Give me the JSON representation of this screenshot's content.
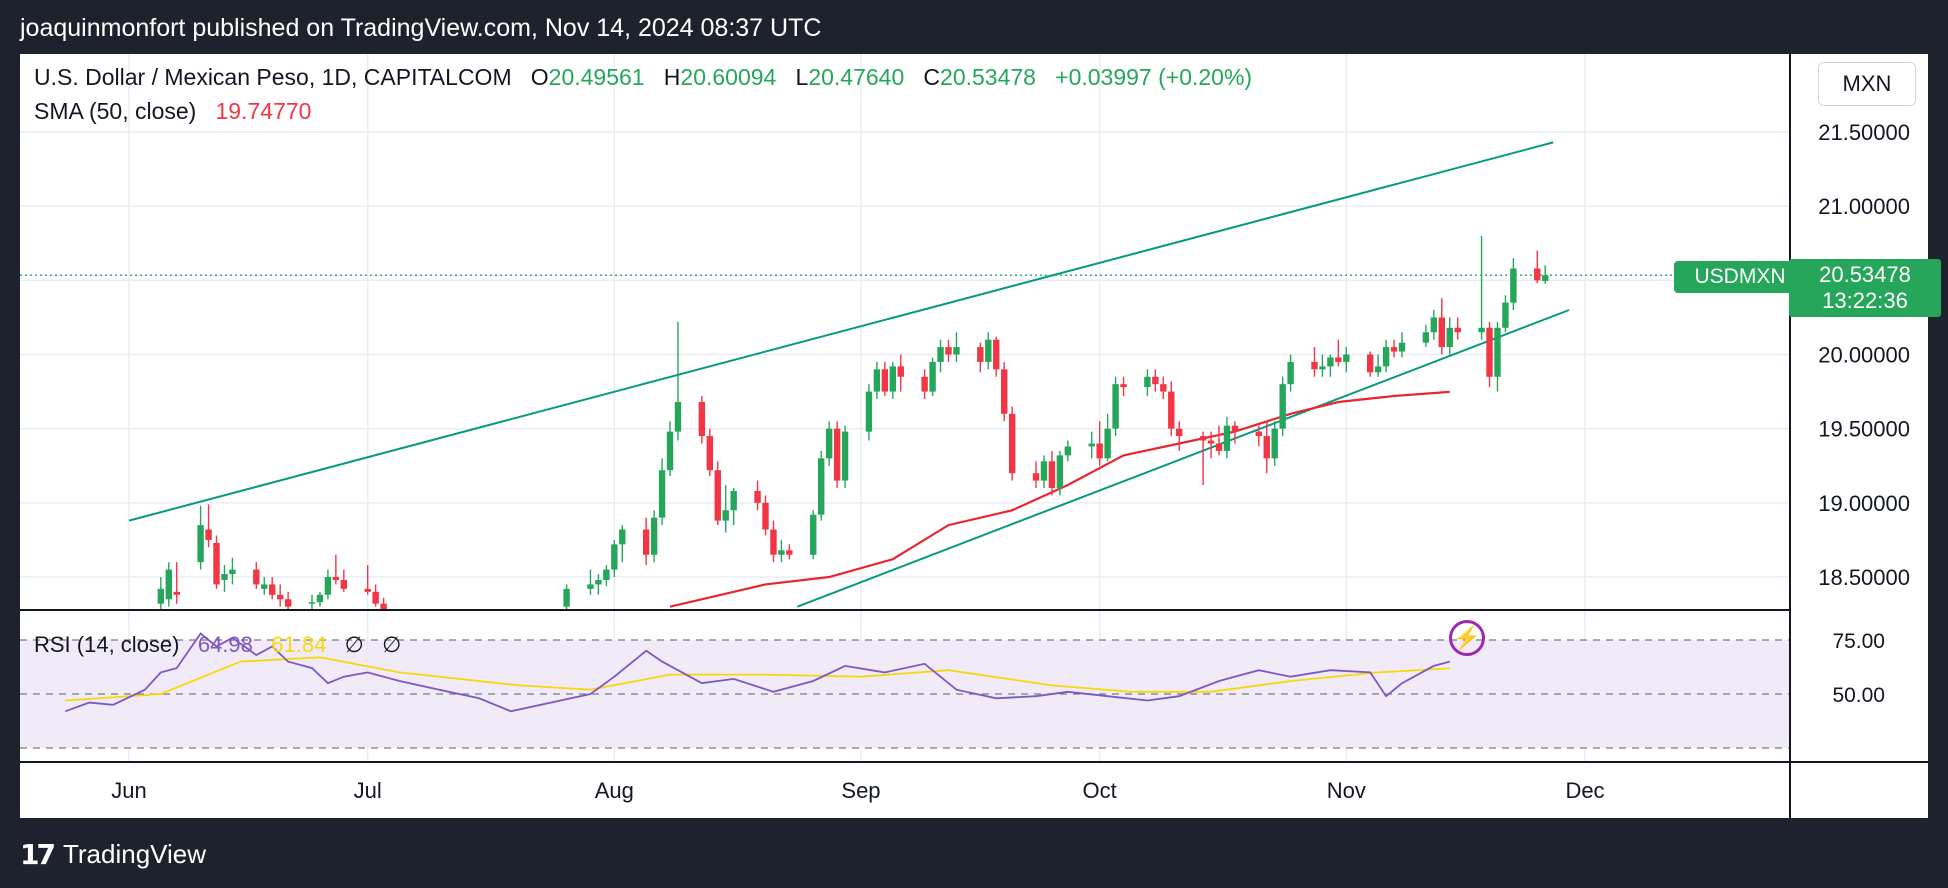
{
  "header": {
    "text": "joaquinmonfort published on TradingView.com, Nov 14, 2024 08:37 UTC"
  },
  "legend": {
    "symbol": "U.S. Dollar / Mexican Peso, 1D, CAPITALCOM",
    "o_label": "O",
    "o_value": "20.49561",
    "h_label": "H",
    "h_value": "20.60094",
    "l_label": "L",
    "l_value": "20.47640",
    "c_label": "C",
    "c_value": "20.53478",
    "change": "+0.03997 (+0.20%)",
    "sma_label": "SMA (50, close)",
    "sma_value": "19.74770"
  },
  "rsi_legend": {
    "label": "RSI (14, close)",
    "value": "64.98",
    "ma_value": "61.84",
    "icon1": "∅",
    "icon2": "∅"
  },
  "price_scale": {
    "currency": "MXN",
    "ticks": [
      "21.50000",
      "21.00000",
      "20.00000",
      "19.50000",
      "19.00000",
      "18.50000"
    ],
    "symbol_tag": "USDMXN",
    "last_price": "20.53478",
    "countdown": "13:22:36"
  },
  "rsi_scale": {
    "ticks": [
      "75.00",
      "50.00"
    ]
  },
  "time_axis": {
    "labels": [
      "Jun",
      "Jul",
      "Aug",
      "Sep",
      "Oct",
      "Nov",
      "Dec"
    ]
  },
  "footer": {
    "logo_mark": "17",
    "logo_text": "TradingView"
  },
  "colors": {
    "up": "#26a65b",
    "down": "#f23645",
    "sma": "#e8262f",
    "channel": "#089981",
    "rsi": "#7e57c2",
    "rsi_ma": "#f5d90a",
    "rsi_band": "#ede7f6"
  },
  "chart_data": {
    "type": "candlestick",
    "title": "U.S. Dollar / Mexican Peso, 1D, CAPITALCOM",
    "ylim": [
      18.3,
      21.8
    ],
    "rsi_ylim": [
      25,
      85
    ],
    "candles_start": "2024-06-05",
    "candles": [
      [
        18.32,
        18.5,
        18.28,
        18.42
      ],
      [
        18.35,
        18.6,
        18.3,
        18.55
      ],
      [
        18.4,
        18.6,
        18.32,
        18.38
      ],
      [
        18.6,
        18.98,
        18.55,
        18.85
      ],
      [
        18.82,
        18.99,
        18.7,
        18.75
      ],
      [
        18.73,
        18.78,
        18.42,
        18.45
      ],
      [
        18.48,
        18.58,
        18.4,
        18.52
      ],
      [
        18.52,
        18.63,
        18.45,
        18.55
      ],
      [
        18.55,
        18.6,
        18.42,
        18.45
      ],
      [
        18.42,
        18.5,
        18.38,
        18.45
      ],
      [
        18.45,
        18.5,
        18.35,
        18.38
      ],
      [
        18.38,
        18.45,
        18.3,
        18.35
      ],
      [
        18.35,
        18.4,
        18.28,
        18.3
      ],
      [
        18.32,
        18.38,
        18.28,
        18.33
      ],
      [
        18.33,
        18.4,
        18.3,
        18.38
      ],
      [
        18.38,
        18.55,
        18.35,
        18.5
      ],
      [
        18.5,
        18.65,
        18.45,
        18.48
      ],
      [
        18.48,
        18.55,
        18.4,
        18.42
      ],
      [
        18.42,
        18.58,
        18.38,
        18.4
      ],
      [
        18.4,
        18.45,
        18.3,
        18.32
      ],
      [
        18.32,
        18.36,
        18.25,
        18.28
      ]
    ],
    "candles_part2_start": "2024-07-26",
    "candles_part2": [
      [
        18.3,
        18.45,
        18.28,
        18.42
      ],
      [
        18.42,
        18.55,
        18.38,
        18.45
      ],
      [
        18.45,
        18.52,
        18.38,
        18.48
      ],
      [
        18.48,
        18.58,
        18.44,
        18.55
      ],
      [
        18.55,
        18.75,
        18.5,
        18.72
      ],
      [
        18.72,
        18.85,
        18.6,
        18.82
      ],
      [
        18.82,
        18.9,
        18.58,
        18.65
      ],
      [
        18.65,
        18.95,
        18.6,
        18.9
      ],
      [
        18.9,
        19.3,
        18.85,
        19.22
      ],
      [
        19.22,
        19.55,
        19.18,
        19.48
      ],
      [
        19.48,
        20.22,
        19.42,
        19.68
      ],
      [
        19.68,
        19.72,
        19.4,
        19.45
      ],
      [
        19.45,
        19.5,
        19.18,
        19.22
      ],
      [
        19.22,
        19.28,
        18.85,
        18.88
      ],
      [
        18.88,
        19.12,
        18.8,
        18.95
      ],
      [
        18.95,
        19.1,
        18.85,
        19.08
      ],
      [
        19.08,
        19.15,
        18.95,
        19.0
      ],
      [
        19.0,
        19.05,
        18.78,
        18.82
      ],
      [
        18.82,
        18.88,
        18.6,
        18.65
      ],
      [
        18.65,
        18.75,
        18.6,
        18.68
      ],
      [
        18.68,
        18.72,
        18.62,
        18.65
      ],
      [
        18.65,
        18.95,
        18.62,
        18.92
      ],
      [
        18.92,
        19.35,
        18.88,
        19.3
      ],
      [
        19.3,
        19.55,
        19.25,
        19.5
      ],
      [
        19.5,
        19.55,
        19.1,
        19.15
      ],
      [
        19.15,
        19.52,
        19.1,
        19.48
      ],
      [
        19.48,
        19.8,
        19.42,
        19.75
      ],
      [
        19.75,
        19.95,
        19.7,
        19.9
      ],
      [
        19.9,
        19.95,
        19.72,
        19.75
      ],
      [
        19.75,
        19.95,
        19.7,
        19.92
      ],
      [
        19.92,
        20.0,
        19.75,
        19.85
      ],
      [
        19.85,
        19.9,
        19.7,
        19.75
      ],
      [
        19.75,
        19.98,
        19.72,
        19.95
      ],
      [
        19.95,
        20.1,
        19.88,
        20.05
      ],
      [
        20.05,
        20.1,
        19.95,
        20.0
      ],
      [
        20.0,
        20.15,
        19.95,
        20.05
      ],
      [
        20.05,
        20.08,
        19.88,
        19.95
      ],
      [
        19.95,
        20.15,
        19.9,
        20.1
      ],
      [
        20.1,
        20.12,
        19.85,
        19.9
      ],
      [
        19.9,
        19.95,
        19.55,
        19.6
      ],
      [
        19.6,
        19.65,
        19.15,
        19.2
      ],
      [
        19.2,
        19.28,
        19.1,
        19.15
      ],
      [
        19.15,
        19.32,
        19.1,
        19.28
      ],
      [
        19.28,
        19.35,
        19.05,
        19.1
      ],
      [
        19.1,
        19.35,
        19.05,
        19.32
      ],
      [
        19.32,
        19.42,
        19.28,
        19.38
      ],
      [
        19.38,
        19.48,
        19.3,
        19.4
      ],
      [
        19.4,
        19.55,
        19.25,
        19.3
      ],
      [
        19.3,
        19.6,
        19.28,
        19.5
      ],
      [
        19.5,
        19.85,
        19.45,
        19.8
      ],
      [
        19.8,
        19.85,
        19.72,
        19.78
      ],
      [
        19.78,
        19.9,
        19.72,
        19.85
      ],
      [
        19.85,
        19.9,
        19.75,
        19.8
      ],
      [
        19.8,
        19.85,
        19.7,
        19.75
      ],
      [
        19.75,
        19.82,
        19.45,
        19.5
      ],
      [
        19.5,
        19.55,
        19.35,
        19.45
      ],
      [
        19.45,
        19.48,
        19.12,
        19.42
      ],
      [
        19.42,
        19.48,
        19.3,
        19.4
      ],
      [
        19.4,
        19.52,
        19.32,
        19.35
      ],
      [
        19.35,
        19.58,
        19.3,
        19.52
      ],
      [
        19.52,
        19.55,
        19.4,
        19.48
      ],
      [
        19.48,
        19.52,
        19.38,
        19.45
      ],
      [
        19.45,
        19.55,
        19.2,
        19.3
      ],
      [
        19.3,
        19.55,
        19.25,
        19.5
      ],
      [
        19.5,
        19.85,
        19.45,
        19.8
      ],
      [
        19.8,
        20.0,
        19.75,
        19.95
      ],
      [
        19.95,
        20.05,
        19.85,
        19.9
      ],
      [
        19.9,
        20.0,
        19.85,
        19.92
      ],
      [
        19.92,
        20.0,
        19.85,
        19.98
      ],
      [
        19.98,
        20.1,
        19.92,
        19.95
      ],
      [
        19.95,
        20.05,
        19.88,
        20.0
      ],
      [
        20.0,
        20.02,
        19.85,
        19.88
      ],
      [
        19.88,
        20.0,
        19.85,
        19.92
      ],
      [
        19.92,
        20.1,
        19.88,
        20.05
      ],
      [
        20.05,
        20.1,
        19.98,
        20.02
      ],
      [
        20.02,
        20.15,
        19.98,
        20.08
      ],
      [
        20.08,
        20.2,
        20.05,
        20.15
      ],
      [
        20.15,
        20.3,
        20.1,
        20.25
      ],
      [
        20.25,
        20.38,
        20.0,
        20.05
      ],
      [
        20.05,
        20.25,
        20.0,
        20.18
      ],
      [
        20.18,
        20.25,
        20.1,
        20.15
      ],
      [
        20.15,
        20.8,
        20.1,
        20.18
      ],
      [
        20.18,
        20.22,
        19.78,
        19.85
      ],
      [
        19.85,
        20.22,
        19.75,
        20.18
      ],
      [
        20.18,
        20.4,
        20.15,
        20.35
      ],
      [
        20.35,
        20.65,
        20.3,
        20.58
      ],
      [
        20.58,
        20.7,
        20.48,
        20.5
      ],
      [
        20.49561,
        20.60094,
        20.4764,
        20.53478
      ]
    ],
    "sma50_points": [
      [
        "2024-08-08",
        18.3
      ],
      [
        "2024-08-20",
        18.45
      ],
      [
        "2024-08-28",
        18.5
      ],
      [
        "2024-09-05",
        18.62
      ],
      [
        "2024-09-12",
        18.85
      ],
      [
        "2024-09-20",
        18.95
      ],
      [
        "2024-09-27",
        19.12
      ],
      [
        "2024-10-04",
        19.32
      ],
      [
        "2024-10-11",
        19.4
      ],
      [
        "2024-10-18",
        19.48
      ],
      [
        "2024-10-25",
        19.6
      ],
      [
        "2024-10-31",
        19.68
      ],
      [
        "2024-11-07",
        19.72
      ],
      [
        "2024-11-14",
        19.7477
      ]
    ],
    "channel_upper": [
      [
        "2024-06-01",
        18.88
      ],
      [
        "2024-11-27",
        21.43
      ]
    ],
    "channel_lower": [
      [
        "2024-08-24",
        18.3
      ],
      [
        "2024-11-29",
        20.3
      ]
    ],
    "rsi_points": [
      [
        "2024-05-24",
        42
      ],
      [
        "2024-05-27",
        46
      ],
      [
        "2024-05-30",
        45
      ],
      [
        "2024-06-03",
        52
      ],
      [
        "2024-06-05",
        60
      ],
      [
        "2024-06-07",
        62
      ],
      [
        "2024-06-10",
        78
      ],
      [
        "2024-06-12",
        72
      ],
      [
        "2024-06-14",
        76
      ],
      [
        "2024-06-17",
        68
      ],
      [
        "2024-06-19",
        72
      ],
      [
        "2024-06-21",
        65
      ],
      [
        "2024-06-24",
        62
      ],
      [
        "2024-06-26",
        55
      ],
      [
        "2024-06-28",
        58
      ],
      [
        "2024-07-01",
        60
      ],
      [
        "2024-07-05",
        56
      ],
      [
        "2024-07-10",
        52
      ],
      [
        "2024-07-15",
        48
      ],
      [
        "2024-07-19",
        42
      ],
      [
        "2024-07-24",
        46
      ],
      [
        "2024-07-29",
        50
      ],
      [
        "2024-08-01",
        58
      ],
      [
        "2024-08-05",
        70
      ],
      [
        "2024-08-07",
        65
      ],
      [
        "2024-08-12",
        55
      ],
      [
        "2024-08-16",
        57
      ],
      [
        "2024-08-21",
        51
      ],
      [
        "2024-08-26",
        56
      ],
      [
        "2024-08-30",
        63
      ],
      [
        "2024-09-04",
        60
      ],
      [
        "2024-09-09",
        64
      ],
      [
        "2024-09-13",
        52
      ],
      [
        "2024-09-18",
        48
      ],
      [
        "2024-09-23",
        49
      ],
      [
        "2024-09-27",
        51
      ],
      [
        "2024-10-02",
        49
      ],
      [
        "2024-10-07",
        47
      ],
      [
        "2024-10-11",
        49
      ],
      [
        "2024-10-16",
        56
      ],
      [
        "2024-10-21",
        61
      ],
      [
        "2024-10-25",
        58
      ],
      [
        "2024-10-30",
        61
      ],
      [
        "2024-11-04",
        60
      ],
      [
        "2024-11-06",
        49
      ],
      [
        "2024-11-08",
        55
      ],
      [
        "2024-11-12",
        63
      ],
      [
        "2024-11-14",
        64.98
      ]
    ],
    "rsi_ma_points": [
      [
        "2024-05-24",
        47
      ],
      [
        "2024-06-05",
        50
      ],
      [
        "2024-06-15",
        65
      ],
      [
        "2024-06-25",
        67
      ],
      [
        "2024-07-05",
        60
      ],
      [
        "2024-07-20",
        54
      ],
      [
        "2024-07-29",
        52
      ],
      [
        "2024-08-08",
        59
      ],
      [
        "2024-08-20",
        59
      ],
      [
        "2024-09-01",
        58
      ],
      [
        "2024-09-12",
        61
      ],
      [
        "2024-09-25",
        54
      ],
      [
        "2024-10-05",
        51
      ],
      [
        "2024-10-15",
        51
      ],
      [
        "2024-10-25",
        56
      ],
      [
        "2024-11-05",
        60
      ],
      [
        "2024-11-14",
        61.84
      ]
    ],
    "x_range": [
      "2024-05-20",
      "2024-12-31"
    ],
    "month_labels": [
      "2024-06-01",
      "2024-07-01",
      "2024-08-01",
      "2024-09-01",
      "2024-10-01",
      "2024-11-01",
      "2024-12-01"
    ],
    "grid": true
  }
}
